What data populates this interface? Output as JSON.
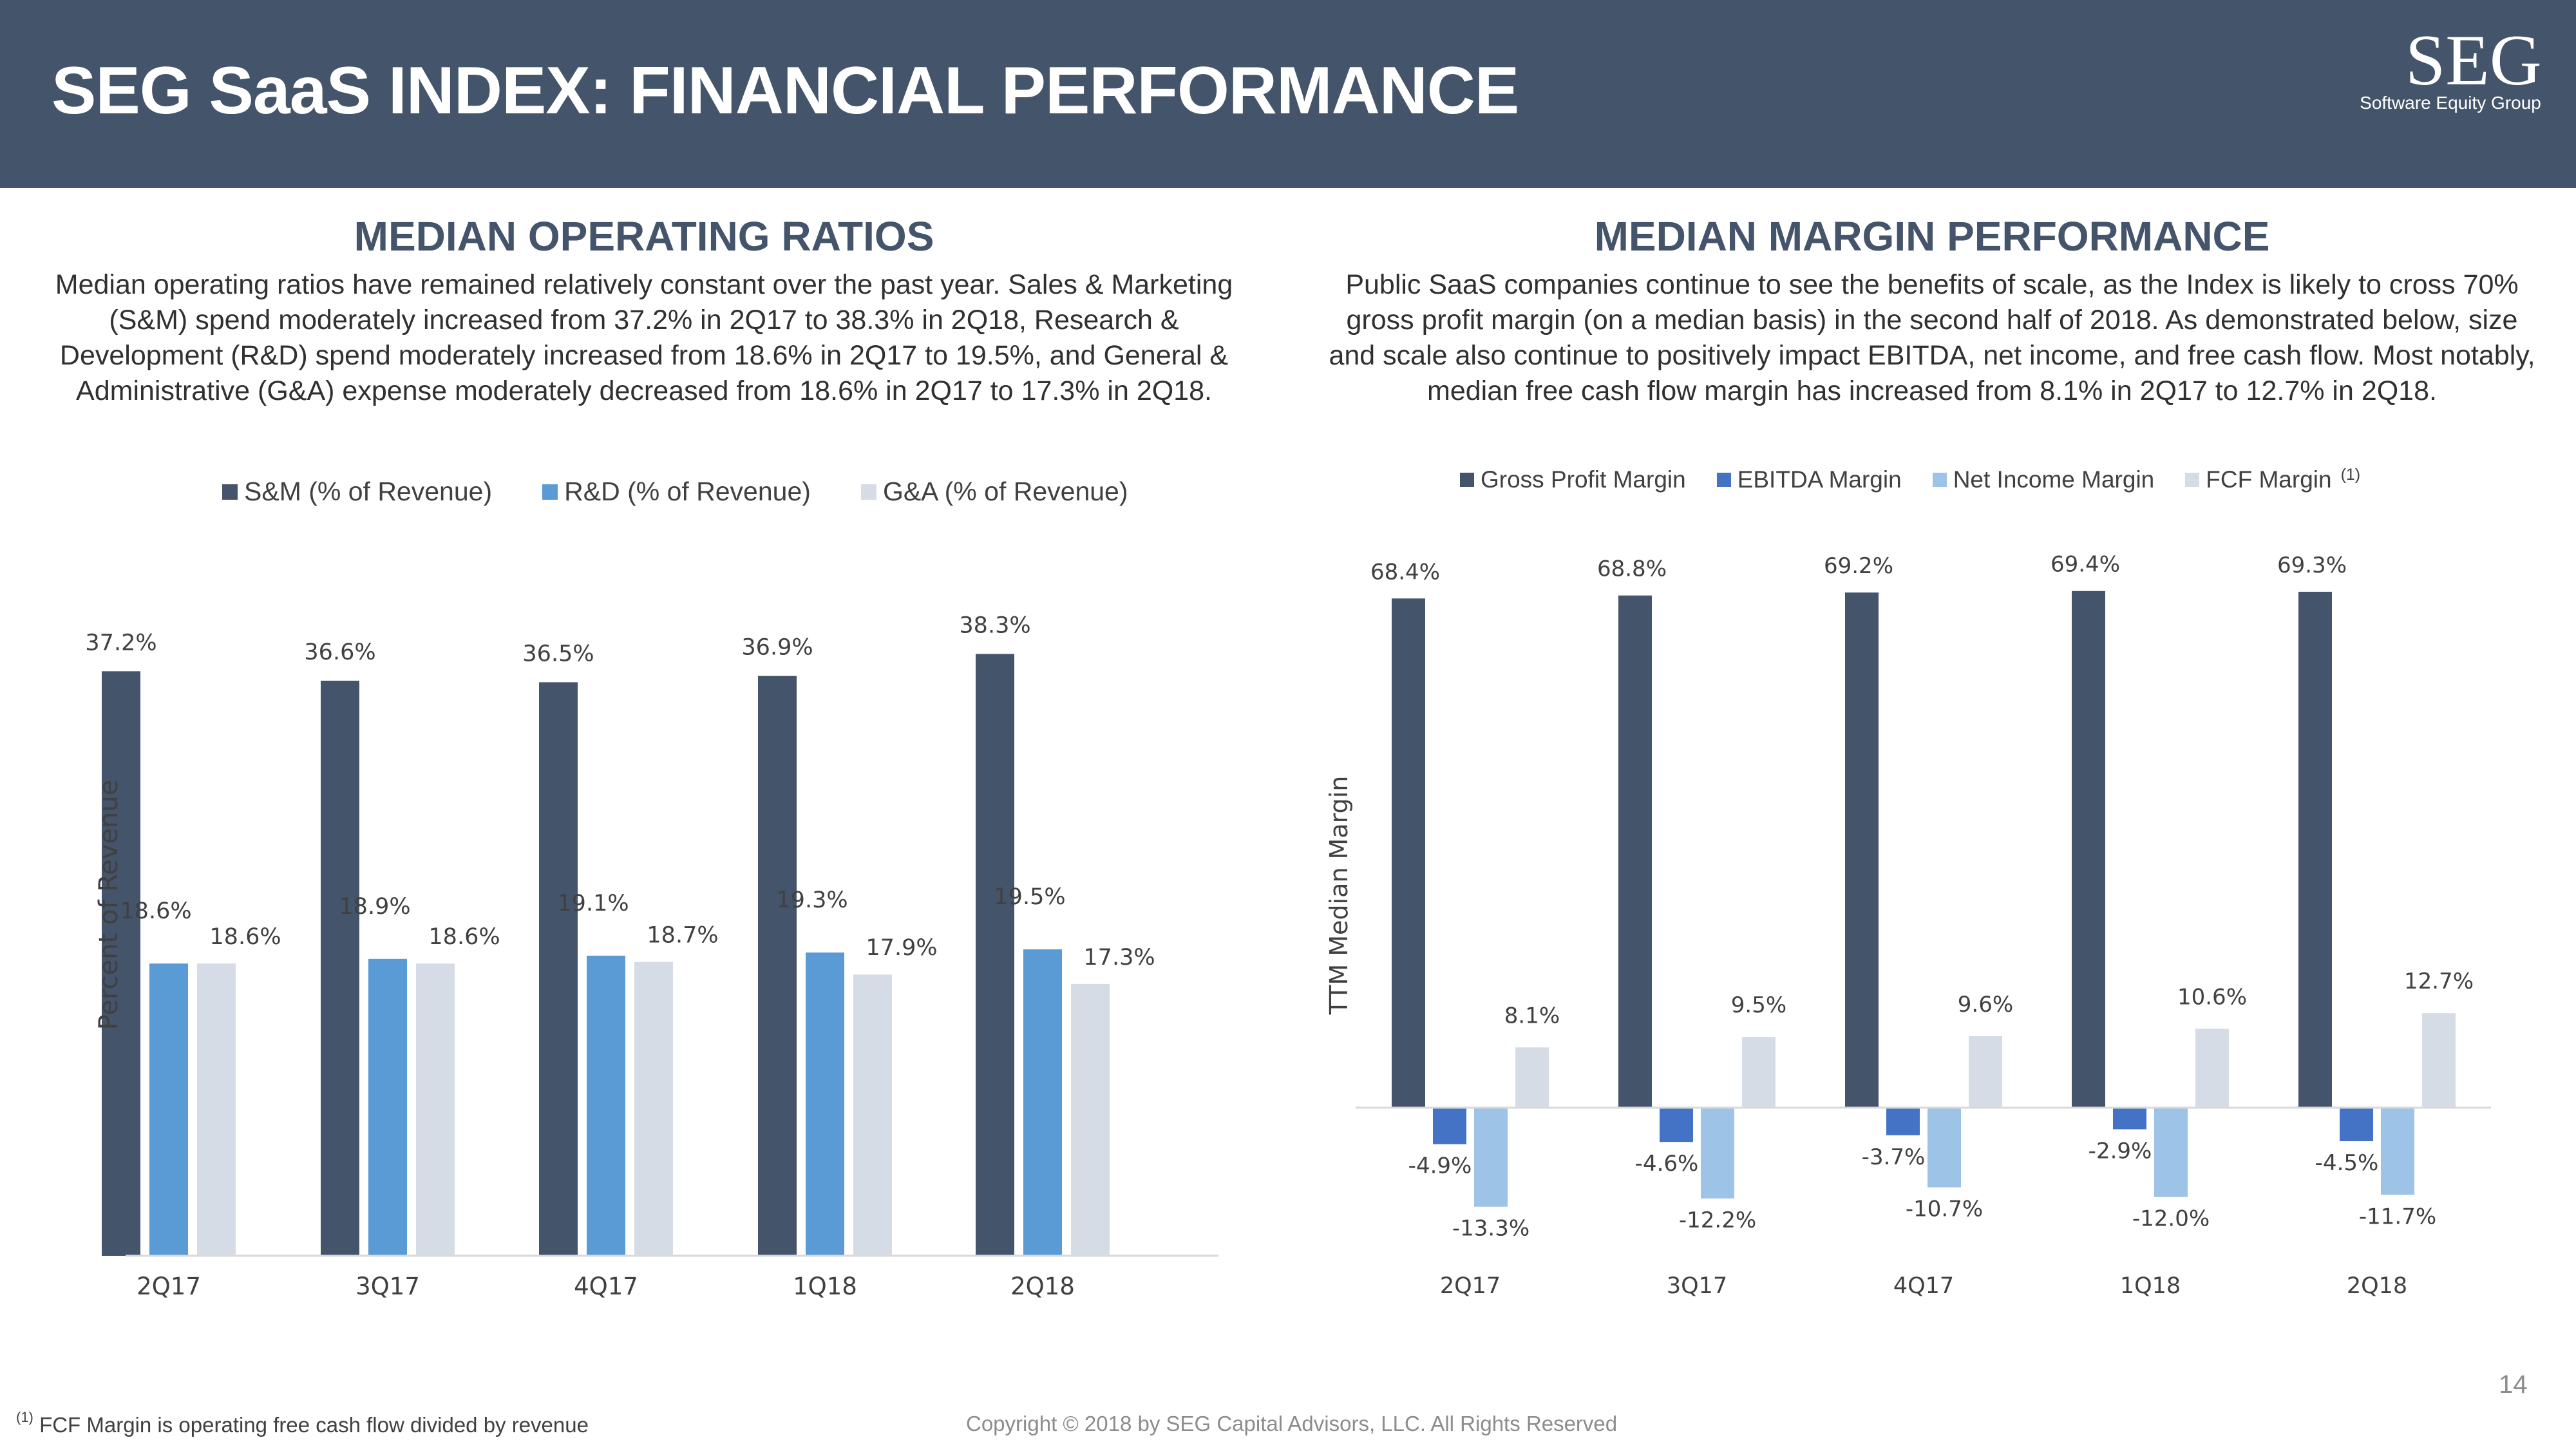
{
  "header": {
    "title": "SEG SaaS INDEX: FINANCIAL PERFORMANCE",
    "logo_text": "SEG",
    "logo_subtext": "Software Equity Group"
  },
  "left": {
    "title": "MEDIAN OPERATING RATIOS",
    "paragraph": "Median operating ratios have remained relatively constant over the past year. Sales & Marketing (S&M) spend moderately increased from 37.2% in 2Q17 to 38.3% in 2Q18, Research & Development (R&D) spend moderately increased from 18.6% in 2Q17 to 19.5%, and General & Administrative (G&A) expense moderately decreased from 18.6% in 2Q17 to 17.3% in 2Q18."
  },
  "right": {
    "title": "MEDIAN MARGIN PERFORMANCE",
    "paragraph": "Public SaaS companies continue to see the benefits of scale, as the Index is likely to cross 70% gross profit margin (on a median basis) in the second half of 2018. As demonstrated below, size and scale also continue to positively impact EBITDA, net income, and free cash flow. Most notably, median free cash flow margin has increased from 8.1% in 2Q17 to 12.7% in 2Q18."
  },
  "chart_data": [
    {
      "type": "bar",
      "title": "MEDIAN OPERATING RATIOS",
      "xlabel": "",
      "ylabel": "Percent of Revenue",
      "ylim": [
        0,
        40
      ],
      "grid": false,
      "legend_position": "top",
      "categories": [
        "2Q17",
        "3Q17",
        "4Q17",
        "1Q18",
        "2Q18"
      ],
      "series": [
        {
          "name": "S&M (% of Revenue)",
          "values": [
            37.2,
            36.6,
            36.5,
            36.9,
            38.3
          ],
          "labels": [
            "37.2%",
            "36.6%",
            "36.5%",
            "36.9%",
            "38.3%"
          ],
          "color": "#44546a"
        },
        {
          "name": "R&D (% of Revenue)",
          "values": [
            18.6,
            18.9,
            19.1,
            19.3,
            19.5
          ],
          "labels": [
            "18.6%",
            "18.9%",
            "19.1%",
            "19.3%",
            "19.5%"
          ],
          "color": "#5b9bd5"
        },
        {
          "name": "G&A (% of Revenue)",
          "values": [
            18.6,
            18.6,
            18.7,
            17.9,
            17.3
          ],
          "labels": [
            "18.6%",
            "18.6%",
            "18.7%",
            "17.9%",
            "17.3%"
          ],
          "color": "#d6dce5"
        }
      ]
    },
    {
      "type": "bar",
      "title": "MEDIAN MARGIN PERFORMANCE",
      "xlabel": "",
      "ylabel": "TTM Median Margin",
      "ylim": [
        -20,
        75
      ],
      "grid": false,
      "legend_position": "top",
      "legend_superscript": "(1)",
      "categories": [
        "2Q17",
        "3Q17",
        "4Q17",
        "1Q18",
        "2Q18"
      ],
      "series": [
        {
          "name": "Gross Profit Margin",
          "values": [
            68.4,
            68.8,
            69.2,
            69.4,
            69.3
          ],
          "labels": [
            "68.4%",
            "68.8%",
            "69.2%",
            "69.4%",
            "69.3%"
          ],
          "color": "#44546a"
        },
        {
          "name": "EBITDA Margin",
          "values": [
            -4.9,
            -4.6,
            -3.7,
            -2.9,
            -4.5
          ],
          "labels": [
            "-4.9%",
            "-4.6%",
            "-3.7%",
            "-2.9%",
            "-4.5%"
          ],
          "color": "#4472c4"
        },
        {
          "name": "Net Income Margin",
          "values": [
            -13.3,
            -12.2,
            -10.7,
            -12.0,
            -11.7
          ],
          "labels": [
            "-13.3%",
            "-12.2%",
            "-10.7%",
            "-12.0%",
            "-11.7%"
          ],
          "color": "#9dc3e6"
        },
        {
          "name": "FCF Margin",
          "values": [
            8.1,
            9.5,
            9.6,
            10.6,
            12.7
          ],
          "labels": [
            "8.1%",
            "9.5%",
            "9.6%",
            "10.6%",
            "12.7%"
          ],
          "color": "#d6dce5"
        }
      ]
    }
  ],
  "footer": {
    "footnote_mark": "(1)",
    "footnote": "FCF Margin is operating free cash flow divided by revenue",
    "copyright": "Copyright © 2018 by SEG Capital Advisors, LLC. All Rights Reserved",
    "page_number": "14"
  }
}
